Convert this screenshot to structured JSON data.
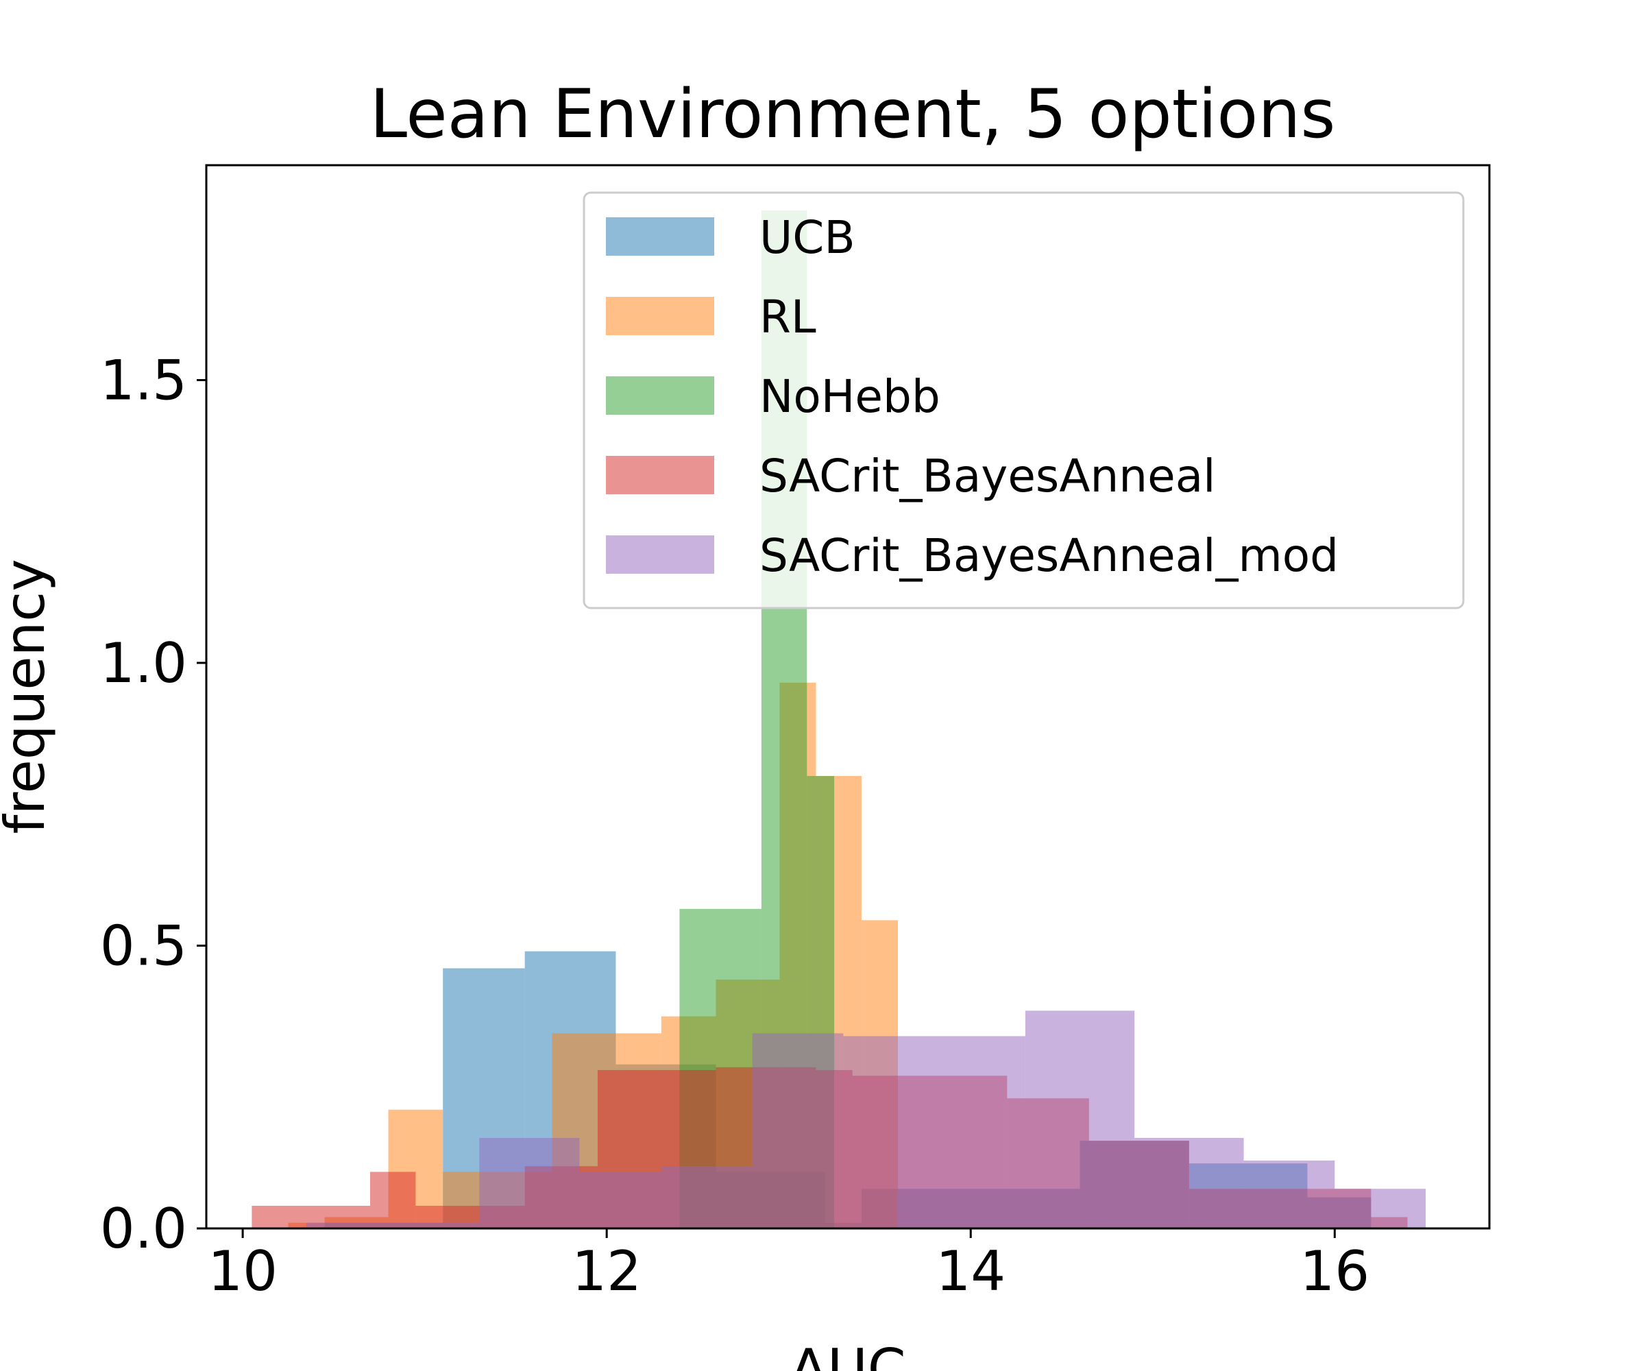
{
  "chart_data": {
    "type": "histogram",
    "title": "Lean Environment, 5 options",
    "xlabel": "AUC",
    "ylabel": "frequency",
    "xlim": [
      9.8,
      16.85
    ],
    "ylim": [
      0.0,
      1.88
    ],
    "xticks": [
      "10",
      "12",
      "14",
      "16"
    ],
    "yticks": [
      "0.0",
      "0.5",
      "1.0",
      "1.5"
    ],
    "legend_position": "upper-right",
    "series": [
      {
        "name": "UCB",
        "color": "#1f77b4",
        "bins": [
          [
            10.25,
            10.45,
            0.0
          ],
          [
            10.45,
            11.1,
            0.01
          ],
          [
            11.1,
            11.55,
            0.46
          ],
          [
            11.55,
            12.05,
            0.49
          ],
          [
            12.05,
            12.6,
            0.29
          ],
          [
            12.6,
            13.2,
            0.1
          ],
          [
            13.2,
            13.4,
            0.01
          ],
          [
            13.4,
            14.6,
            0.07
          ],
          [
            14.6,
            15.2,
            0.155
          ],
          [
            15.2,
            15.85,
            0.115
          ],
          [
            15.85,
            16.2,
            0.055
          ]
        ]
      },
      {
        "name": "RL",
        "color": "#ff7f0e",
        "bins": [
          [
            10.25,
            10.45,
            0.01
          ],
          [
            10.45,
            10.8,
            0.02
          ],
          [
            10.8,
            11.1,
            0.21
          ],
          [
            11.1,
            11.7,
            0.1
          ],
          [
            11.7,
            11.95,
            0.345
          ],
          [
            11.95,
            12.3,
            0.345
          ],
          [
            12.3,
            12.6,
            0.375
          ],
          [
            12.6,
            12.95,
            0.44
          ],
          [
            12.95,
            13.15,
            0.965
          ],
          [
            13.15,
            13.4,
            0.8
          ],
          [
            13.4,
            13.6,
            0.545
          ]
        ]
      },
      {
        "name": "NoHebb",
        "color": "#2ca02c",
        "bins": [
          [
            11.5,
            11.9,
            0.0
          ],
          [
            11.9,
            12.4,
            0.0
          ],
          [
            12.4,
            12.85,
            0.565
          ],
          [
            12.85,
            13.1,
            1.8
          ],
          [
            13.1,
            13.25,
            0.8
          ],
          [
            13.25,
            13.4,
            0.0
          ]
        ]
      },
      {
        "name": "SACrit_BayesAnneal",
        "color": "#d62728",
        "bins": [
          [
            10.05,
            10.7,
            0.04
          ],
          [
            10.7,
            10.95,
            0.1
          ],
          [
            10.95,
            11.55,
            0.04
          ],
          [
            11.55,
            11.95,
            0.11
          ],
          [
            11.95,
            12.6,
            0.28
          ],
          [
            12.6,
            13.15,
            0.285
          ],
          [
            13.15,
            13.35,
            0.28
          ],
          [
            13.35,
            14.2,
            0.27
          ],
          [
            14.2,
            14.65,
            0.23
          ],
          [
            14.65,
            15.2,
            0.155
          ],
          [
            15.2,
            16.2,
            0.07
          ],
          [
            16.2,
            16.4,
            0.02
          ]
        ]
      },
      {
        "name": "SACrit_BayesAnneal_mod",
        "color": "#9467bd",
        "bins": [
          [
            10.35,
            10.8,
            0.01
          ],
          [
            10.8,
            11.3,
            0.01
          ],
          [
            11.3,
            11.85,
            0.16
          ],
          [
            11.85,
            12.3,
            0.1
          ],
          [
            12.3,
            12.8,
            0.11
          ],
          [
            12.8,
            13.3,
            0.345
          ],
          [
            13.3,
            14.3,
            0.34
          ],
          [
            14.3,
            14.9,
            0.385
          ],
          [
            14.9,
            15.5,
            0.16
          ],
          [
            15.5,
            16.0,
            0.12
          ],
          [
            16.0,
            16.5,
            0.07
          ]
        ]
      }
    ]
  }
}
